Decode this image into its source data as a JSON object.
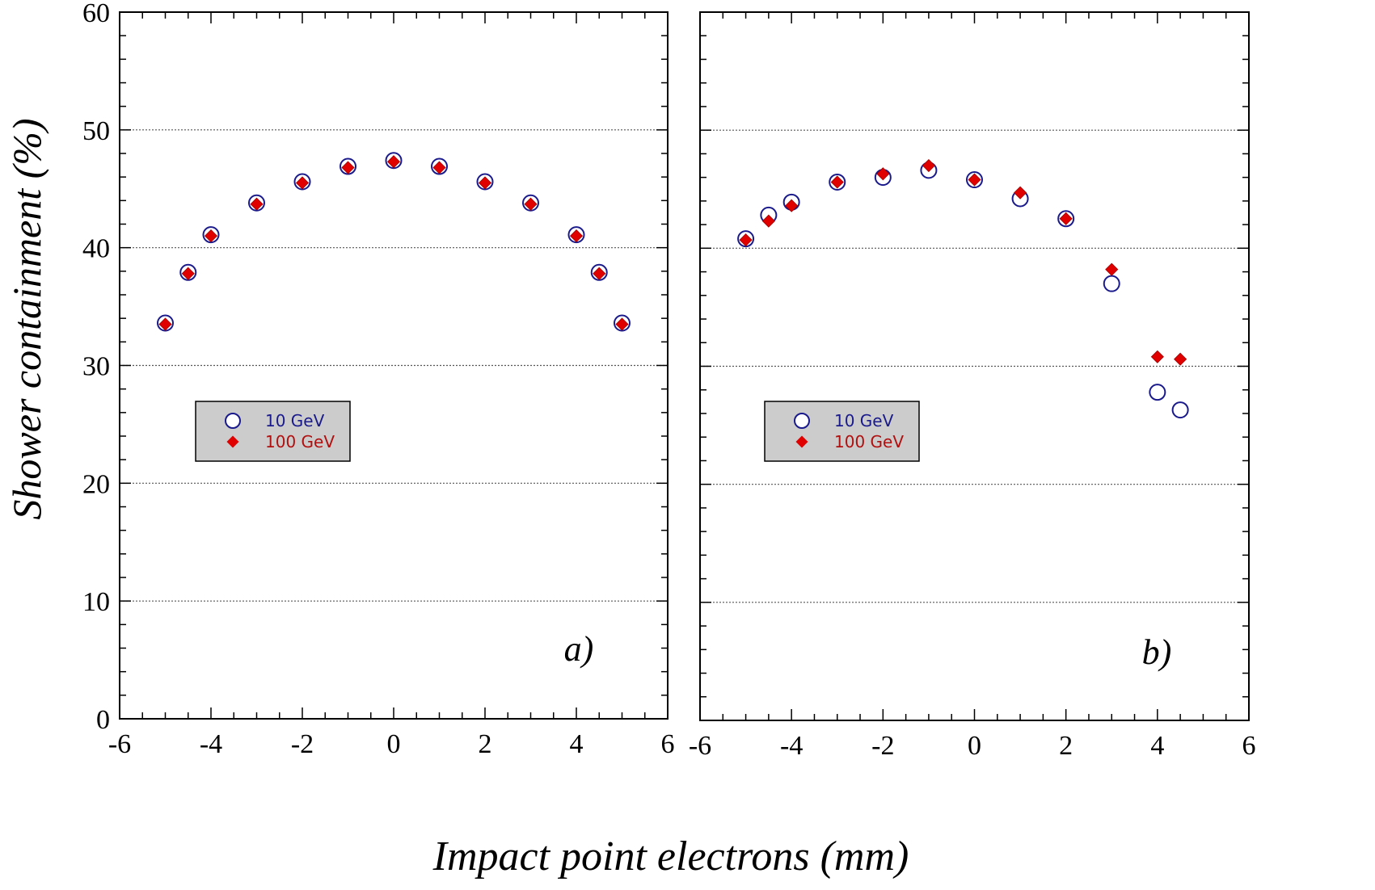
{
  "chart_data": {
    "type": "scatter",
    "xlabel": "Impact point electrons (mm)",
    "ylabel": "Shower containment (%)",
    "xlim": [
      -6,
      6
    ],
    "ylim": [
      0,
      60
    ],
    "x_ticks": [
      "-6",
      "-4",
      "-2",
      "0",
      "2",
      "4",
      "6"
    ],
    "y_ticks": [
      "0",
      "10",
      "20",
      "30",
      "40",
      "50",
      "60"
    ],
    "grid": "horizontal dotted at 10, 20, 30, 40, 50",
    "legend_placement": "left-middle",
    "colors": {
      "10 GeV": "#1a1a8c",
      "100 GeV": "#e00000"
    },
    "panels": [
      {
        "label": "a)",
        "series": [
          {
            "name": "10 GeV",
            "marker": "open-circle",
            "x": [
              -5,
              -4.5,
              -4,
              -3,
              -2,
              -1,
              0,
              1,
              2,
              3,
              4,
              4.5,
              5
            ],
            "y": [
              33.6,
              37.9,
              41.1,
              43.8,
              45.6,
              46.9,
              47.4,
              46.9,
              45.6,
              43.8,
              41.1,
              37.9,
              33.6
            ]
          },
          {
            "name": "100 GeV",
            "marker": "filled-diamond",
            "x": [
              -5,
              -4.5,
              -4,
              -3,
              -2,
              -1,
              0,
              1,
              2,
              3,
              4,
              4.5,
              5
            ],
            "y": [
              33.5,
              37.8,
              41.0,
              43.7,
              45.5,
              46.8,
              47.3,
              46.8,
              45.5,
              43.7,
              41.0,
              37.8,
              33.5
            ]
          }
        ]
      },
      {
        "label": "b)",
        "series": [
          {
            "name": "10 GeV",
            "marker": "open-circle",
            "x": [
              -5,
              -4.5,
              -4,
              -3,
              -2,
              -1,
              0,
              1,
              2,
              3,
              4,
              4.5
            ],
            "y": [
              40.8,
              42.8,
              43.9,
              45.6,
              46.0,
              46.6,
              45.8,
              44.2,
              42.5,
              37.0,
              27.8,
              26.3
            ]
          },
          {
            "name": "100 GeV",
            "marker": "filled-diamond",
            "x": [
              -5,
              -4.5,
              -4,
              -3,
              -2,
              -1,
              0,
              1,
              2,
              3,
              4,
              4.5
            ],
            "y": [
              40.7,
              42.3,
              43.6,
              45.6,
              46.3,
              47.0,
              45.8,
              44.7,
              42.5,
              38.2,
              30.8,
              30.6
            ]
          }
        ]
      }
    ]
  }
}
